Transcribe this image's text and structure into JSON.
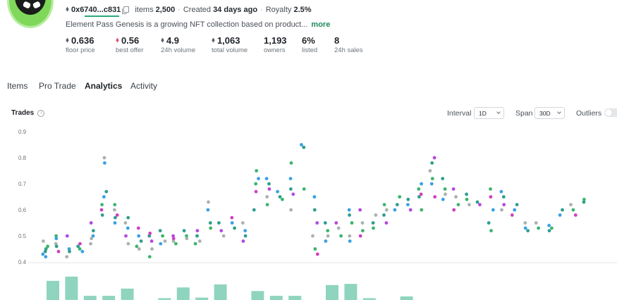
{
  "collection": {
    "contract": "0x6740...c831",
    "items_label": "items",
    "items_count": "2,500",
    "created_label": "Created",
    "created_value": "34 days ago",
    "royalty_label": "Royalty",
    "royalty_value": "2.5%",
    "description": "Element Pass Genesis is a growing NFT collection based on product...",
    "more_label": "more"
  },
  "stats": [
    {
      "value": "0.636",
      "label": "floor price",
      "symbol": "eth"
    },
    {
      "value": "0.56",
      "label": "best offer",
      "symbol": "weth"
    },
    {
      "value": "4.9",
      "label": "24h volume",
      "symbol": "eth"
    },
    {
      "value": "1,063",
      "label": "total volume",
      "symbol": "eth"
    },
    {
      "value": "1,193",
      "label": "owners",
      "symbol": ""
    },
    {
      "value": "6%",
      "label": "listed",
      "symbol": ""
    },
    {
      "value": "8",
      "label": "24h sales",
      "symbol": ""
    }
  ],
  "tabs": [
    {
      "label": "Items",
      "active": false
    },
    {
      "label": "Pro Trade",
      "active": false
    },
    {
      "label": "Analytics",
      "active": true
    },
    {
      "label": "Activity",
      "active": false
    }
  ],
  "trades": {
    "title": "Trades",
    "interval_label": "Interval",
    "interval_value": "1D",
    "span_label": "Span",
    "span_value": "30D",
    "outliers_label": "Outliers",
    "outliers_on": false
  },
  "colors": {
    "accent": "#2aa87a",
    "dot_blue": "#3aa0e6",
    "dot_teal": "#2e9e8c",
    "dot_green": "#3bb56c",
    "dot_purple": "#b548e0",
    "dot_pink": "#d040c0",
    "dot_gray": "#a9b2ae",
    "bar": "#8fd4bf"
  },
  "chart_data": {
    "type": "scatter",
    "title": "Trades",
    "ylabel": "",
    "ylim": [
      0.4,
      0.9
    ],
    "yticks": [
      "0.9",
      "0.8",
      "0.7",
      "0.6",
      "0.5",
      "0.4"
    ],
    "clusters": [
      {
        "x": 1,
        "ys": [
          0.43,
          0.44,
          0.46,
          0.48,
          0.42,
          0.45
        ]
      },
      {
        "x": 2,
        "ys": [
          0.47,
          0.5,
          0.44,
          0.49,
          0.46
        ]
      },
      {
        "x": 3,
        "ys": [
          0.42,
          0.45,
          0.44,
          0.5
        ]
      },
      {
        "x": 4,
        "ys": [
          0.45,
          0.47,
          0.44,
          0.46
        ]
      },
      {
        "x": 5,
        "ys": [
          0.47,
          0.5,
          0.52,
          0.55,
          0.49
        ]
      },
      {
        "x": 6,
        "ys": [
          0.6,
          0.65,
          0.67,
          0.62,
          0.8,
          0.78,
          0.58
        ]
      },
      {
        "x": 7,
        "ys": [
          0.6,
          0.62,
          0.58,
          0.55,
          0.57
        ]
      },
      {
        "x": 8,
        "ys": [
          0.55,
          0.53,
          0.57,
          0.5,
          0.47
        ]
      },
      {
        "x": 9,
        "ys": [
          0.53,
          0.5,
          0.48,
          0.46,
          0.45
        ]
      },
      {
        "x": 10,
        "ys": [
          0.5,
          0.48,
          0.45,
          0.42,
          0.51
        ]
      },
      {
        "x": 11,
        "ys": [
          0.52,
          0.5,
          0.48,
          0.47
        ]
      },
      {
        "x": 12,
        "ys": [
          0.5,
          0.48,
          0.47,
          0.49
        ]
      },
      {
        "x": 13,
        "ys": [
          0.52,
          0.5,
          0.49
        ]
      },
      {
        "x": 14,
        "ys": [
          0.5,
          0.52,
          0.48,
          0.47
        ]
      },
      {
        "x": 15,
        "ys": [
          0.6,
          0.55,
          0.53,
          0.63
        ]
      },
      {
        "x": 16,
        "ys": [
          0.55,
          0.52,
          0.5
        ]
      },
      {
        "x": 17,
        "ys": [
          0.57,
          0.55,
          0.53
        ]
      },
      {
        "x": 18,
        "ys": [
          0.55,
          0.52,
          0.5,
          0.48
        ]
      },
      {
        "x": 19,
        "ys": [
          0.7,
          0.67,
          0.72,
          0.6,
          0.75
        ]
      },
      {
        "x": 20,
        "ys": [
          0.72,
          0.7,
          0.68,
          0.65,
          0.62
        ]
      },
      {
        "x": 21,
        "ys": [
          0.67,
          0.65,
          0.64
        ]
      },
      {
        "x": 22,
        "ys": [
          0.72,
          0.68,
          0.66,
          0.6,
          0.78
        ]
      },
      {
        "x": 23,
        "ys": [
          0.85,
          0.84,
          0.68
        ]
      },
      {
        "x": 24,
        "ys": [
          0.65,
          0.6,
          0.55,
          0.5,
          0.45,
          0.43
        ]
      },
      {
        "x": 25,
        "ys": [
          0.55,
          0.52,
          0.5,
          0.48
        ]
      },
      {
        "x": 26,
        "ys": [
          0.55,
          0.53,
          0.5
        ]
      },
      {
        "x": 27,
        "ys": [
          0.6,
          0.58,
          0.55,
          0.5,
          0.48
        ]
      },
      {
        "x": 28,
        "ys": [
          0.6,
          0.55,
          0.52,
          0.5
        ]
      },
      {
        "x": 29,
        "ys": [
          0.55,
          0.53,
          0.58
        ]
      },
      {
        "x": 30,
        "ys": [
          0.58,
          0.55,
          0.6,
          0.62
        ]
      },
      {
        "x": 31,
        "ys": [
          0.6,
          0.62,
          0.65
        ]
      },
      {
        "x": 32,
        "ys": [
          0.62,
          0.64,
          0.6
        ]
      },
      {
        "x": 33,
        "ys": [
          0.68,
          0.66,
          0.7,
          0.65,
          0.6
        ]
      },
      {
        "x": 34,
        "ys": [
          0.7,
          0.78,
          0.8,
          0.75,
          0.72,
          0.65
        ]
      },
      {
        "x": 35,
        "ys": [
          0.72,
          0.68,
          0.66,
          0.64
        ]
      },
      {
        "x": 36,
        "ys": [
          0.68,
          0.65,
          0.62,
          0.6
        ]
      },
      {
        "x": 37,
        "ys": [
          0.66,
          0.64,
          0.62
        ]
      },
      {
        "x": 38,
        "ys": [
          0.63,
          0.62
        ]
      },
      {
        "x": 39,
        "ys": [
          0.68,
          0.65,
          0.6,
          0.55,
          0.52
        ]
      },
      {
        "x": 40,
        "ys": [
          0.67,
          0.65,
          0.62,
          0.6
        ]
      },
      {
        "x": 41,
        "ys": [
          0.58,
          0.6,
          0.62
        ]
      },
      {
        "x": 42,
        "ys": [
          0.55,
          0.53,
          0.52
        ]
      },
      {
        "x": 43,
        "ys": [
          0.55,
          0.53
        ]
      },
      {
        "x": 44,
        "ys": [
          0.54,
          0.52,
          0.53
        ]
      },
      {
        "x": 45,
        "ys": [
          0.58,
          0.6
        ]
      },
      {
        "x": 46,
        "ys": [
          0.62,
          0.6,
          0.58
        ]
      },
      {
        "x": 47,
        "ys": [
          0.63,
          0.64
        ]
      }
    ],
    "volume_bars": [
      1.6,
      1.95,
      0.35,
      0.35,
      0.95,
      0,
      0.15,
      1.05,
      0.2,
      1.3,
      0,
      0.75,
      0.35,
      0.35,
      0,
      1.25,
      1.35,
      0.15,
      0,
      0.3,
      0,
      0,
      0,
      0,
      0
    ]
  }
}
